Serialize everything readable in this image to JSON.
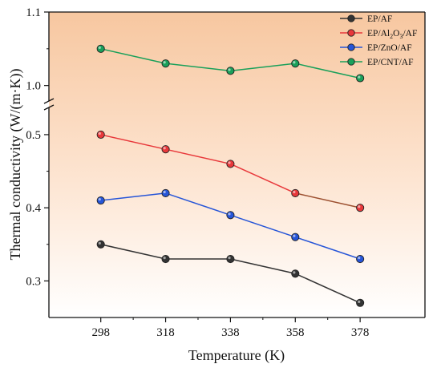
{
  "chart_data": {
    "type": "line",
    "title": "",
    "xlabel": "Temperature (K)",
    "ylabel": "Thermal conductivity (W/(m·K))",
    "x": [
      298,
      318,
      338,
      358,
      378
    ],
    "xlim": [
      282,
      398
    ],
    "y_broken": true,
    "y_segments": [
      {
        "range": [
          0.25,
          0.535
        ],
        "ticks": [
          0.3,
          0.4,
          0.5
        ],
        "tick_labels": [
          "0.3",
          "0.4",
          "0.5"
        ]
      },
      {
        "range": [
          0.98,
          1.1
        ],
        "ticks": [
          1.0,
          1.1
        ],
        "tick_labels": [
          "1.0",
          "1.1"
        ]
      }
    ],
    "grid": false,
    "legend": "top-right",
    "background": "gradient orange (top) to white (bottom)",
    "series": [
      {
        "name": "EP/AF",
        "color": "#333333",
        "values": [
          0.35,
          0.33,
          0.33,
          0.31,
          0.27
        ]
      },
      {
        "name": "EP/Al2O3/AF",
        "color": "#e8383b",
        "segment_colors": [
          "#e8383b",
          "#e8383b",
          "#e8383b",
          "#9c5030"
        ],
        "values": [
          0.5,
          0.48,
          0.46,
          0.42,
          0.4
        ]
      },
      {
        "name": "EP/ZnO/AF",
        "color": "#2655d8",
        "values": [
          0.41,
          0.42,
          0.39,
          0.36,
          0.33
        ]
      },
      {
        "name": "EP/CNT/AF",
        "color": "#1aa05a",
        "values": [
          1.05,
          1.03,
          1.02,
          1.03,
          1.01
        ]
      }
    ]
  }
}
